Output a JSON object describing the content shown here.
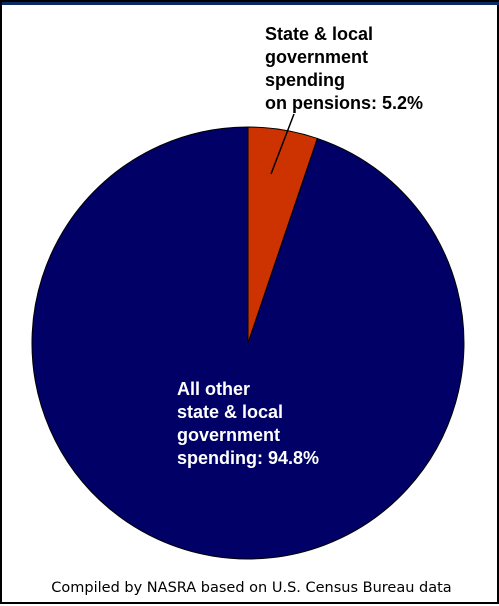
{
  "chart_data": {
    "type": "pie",
    "categories": [
      "State & local government spending on pensions",
      "All other state & local government spending"
    ],
    "values": [
      5.2,
      94.8
    ],
    "unit": "%",
    "colors": [
      "#cc3300",
      "#000066"
    ],
    "start_angle_degrees": 0,
    "direction": "clockwise",
    "labels": [
      "State & local\ngovernment\nspending\non pensions: 5.2%",
      "All other\nstate & local\ngovernment\nspending: 94.8%"
    ],
    "legend": "none",
    "edge_color": "#000000"
  },
  "caption": "Compiled by NASRA based on U.S. Census Bureau data"
}
